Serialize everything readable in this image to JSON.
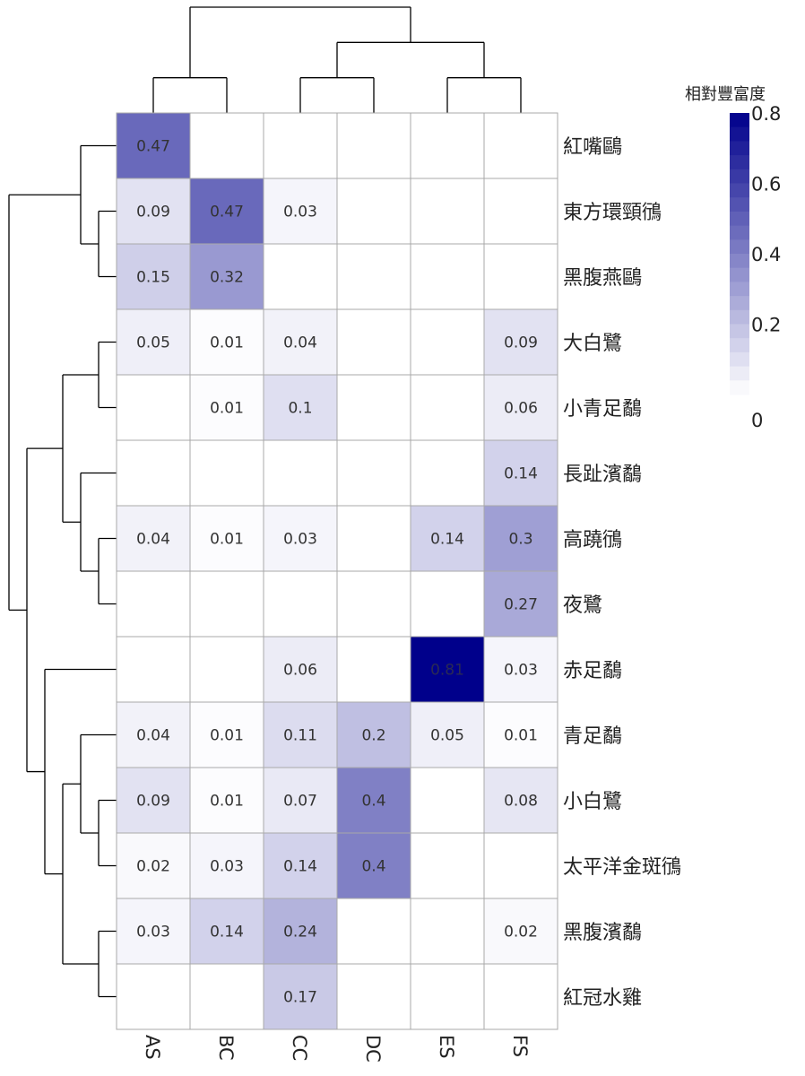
{
  "chart_data": {
    "type": "heatmap",
    "columns": [
      "AS",
      "BC",
      "CC",
      "DC",
      "ES",
      "FS"
    ],
    "rows": [
      "紅嘴鷗",
      "東方環頸鴴",
      "黑腹燕鷗",
      "大白鷺",
      "小青足鷸",
      "長趾濱鷸",
      "高蹺鴴",
      "夜鷺",
      "赤足鷸",
      "青足鷸",
      "小白鷺",
      "太平洋金斑鴴",
      "黑腹濱鷸",
      "紅冠水雞"
    ],
    "values": [
      [
        0.47,
        null,
        null,
        null,
        null,
        null
      ],
      [
        0.09,
        0.47,
        0.03,
        null,
        null,
        null
      ],
      [
        0.15,
        0.32,
        null,
        null,
        null,
        null
      ],
      [
        0.05,
        0.01,
        0.04,
        null,
        null,
        0.09
      ],
      [
        null,
        0.01,
        0.1,
        null,
        null,
        0.06
      ],
      [
        null,
        null,
        null,
        null,
        null,
        0.14
      ],
      [
        0.04,
        0.01,
        0.03,
        null,
        0.14,
        0.3
      ],
      [
        null,
        null,
        null,
        null,
        null,
        0.27
      ],
      [
        null,
        null,
        0.06,
        null,
        0.81,
        0.03
      ],
      [
        0.04,
        0.01,
        0.11,
        0.2,
        0.05,
        0.01
      ],
      [
        0.09,
        0.01,
        0.07,
        0.4,
        null,
        0.08
      ],
      [
        0.02,
        0.03,
        0.14,
        0.4,
        null,
        null
      ],
      [
        0.03,
        0.14,
        0.24,
        null,
        null,
        0.02
      ],
      [
        null,
        null,
        0.17,
        null,
        null,
        null
      ]
    ],
    "legend": {
      "title": "相對豐富度",
      "ticks": [
        "0.8",
        "0.6",
        "0.4",
        "0.2",
        "0"
      ],
      "tick_values": [
        0.8,
        0.6,
        0.4,
        0.2,
        0
      ],
      "range": [
        0,
        0.8
      ],
      "placement": "top-right"
    },
    "colors": {
      "low": "#ffffff",
      "high": "#00008b",
      "grid": "#a9a9a9",
      "dendrogram": "#000000"
    },
    "dendrogram": {
      "columns": "((AS,BC),((CC,DC),(ES,FS)))",
      "rows": "((紅嘴鷗,(東方環頸鴴,黑腹燕鷗)),(((大白鷺,小青足鷸),(長趾濱鷸,(高蹺鴴,夜鷺))),(赤足鷸,((青足鷸,(小白鷺,太平洋金斑鴴)),(黑腹濱鷸,紅冠水雞)))))"
    }
  }
}
